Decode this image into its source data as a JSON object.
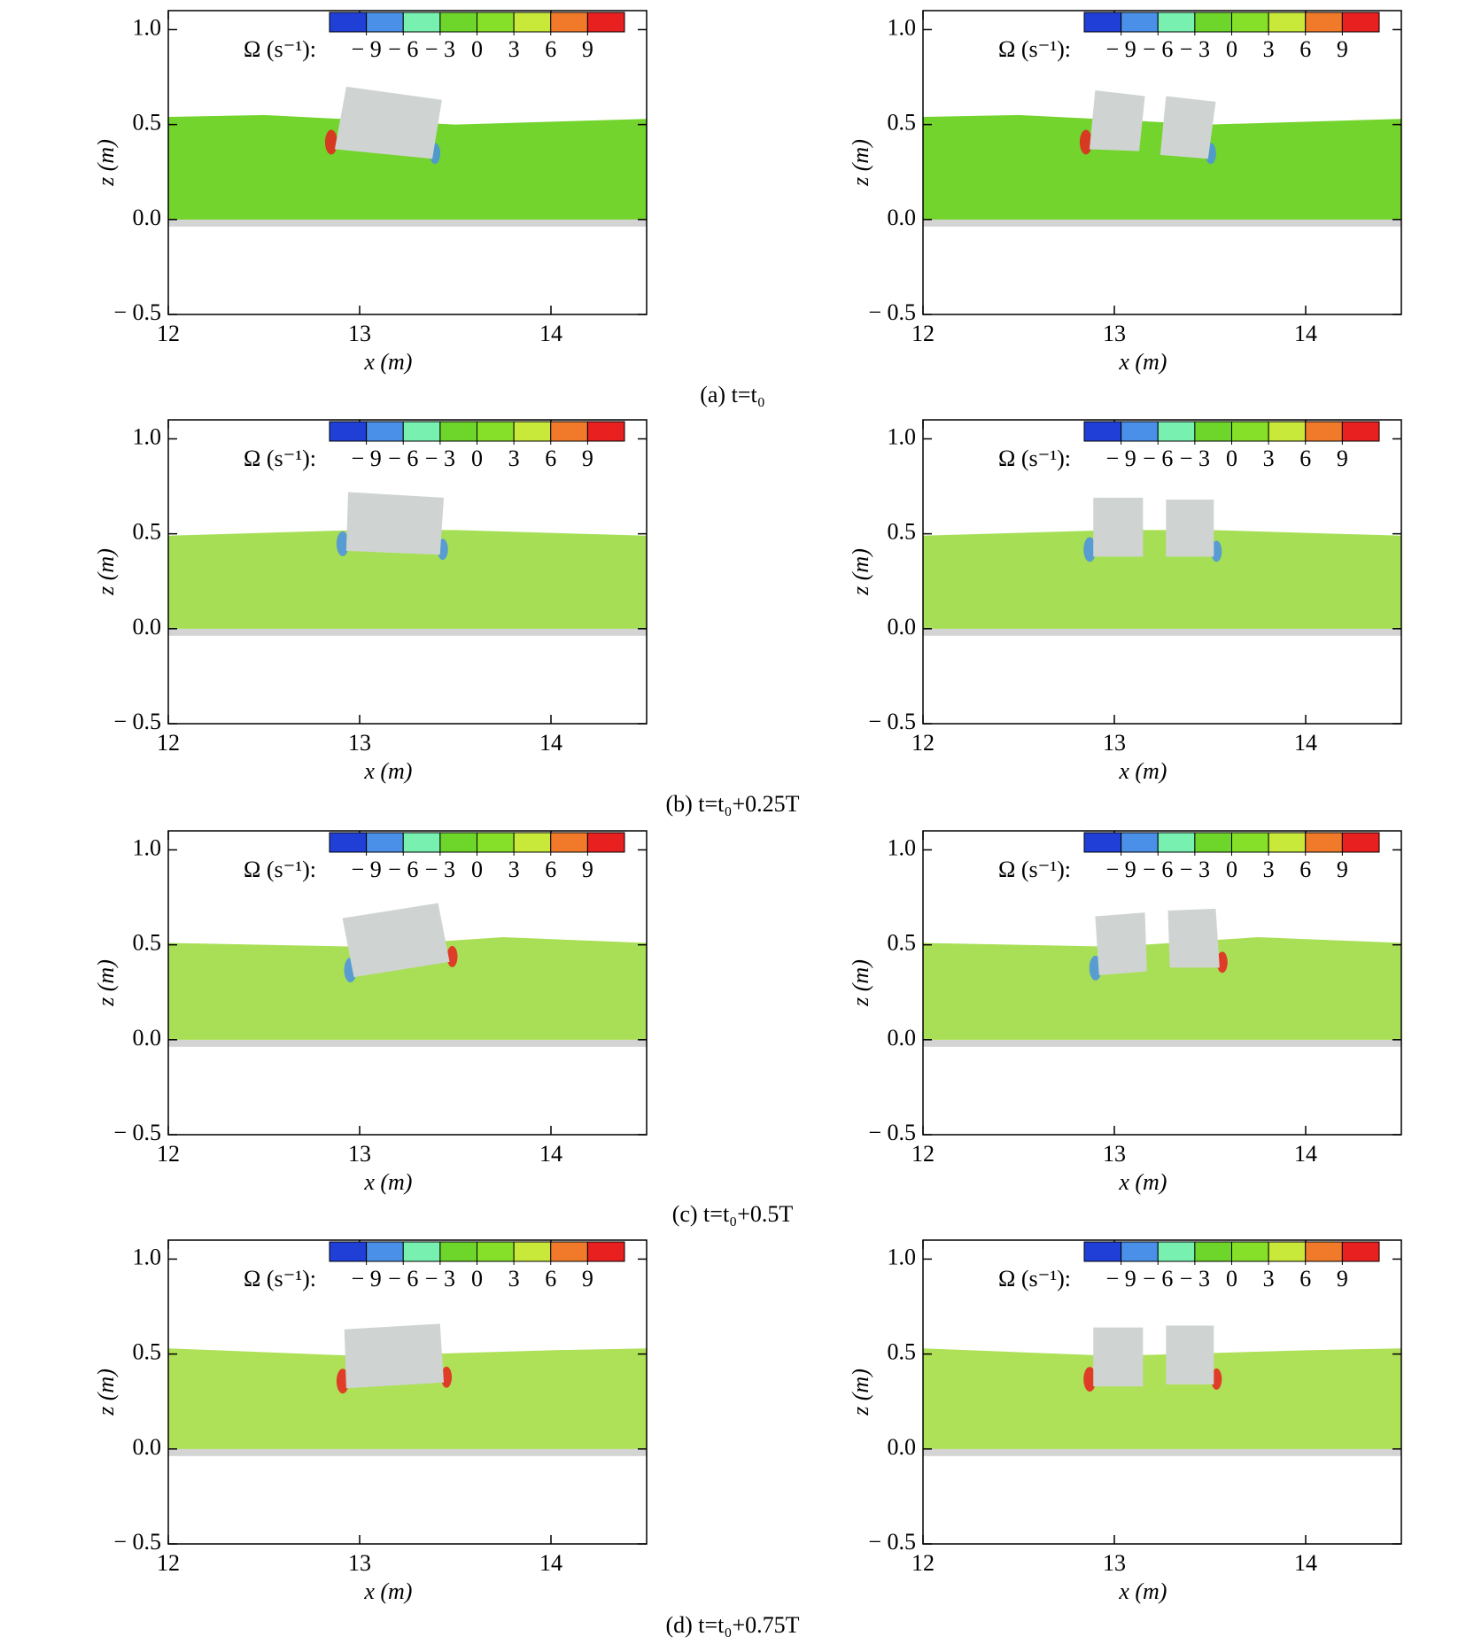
{
  "chart_data": [
    {
      "type": "field",
      "xlabel": "x (m)",
      "ylabel": "z (m)",
      "xlim": [
        12,
        14.5
      ],
      "ylim": [
        -0.5,
        1.1
      ],
      "xticks": [
        12,
        13,
        14
      ],
      "yticks": [
        {
          "value": -0.5,
          "label": "− 0.5"
        },
        {
          "value": 0,
          "label": "0.0"
        },
        {
          "value": 0.5,
          "label": "0.5"
        },
        {
          "value": 1,
          "label": "1.0"
        }
      ],
      "colorbar": {
        "label": "Ω (s⁻¹):",
        "lim": [
          -12,
          12
        ],
        "ticks": [
          {
            "value": -9,
            "label": "− 9"
          },
          {
            "value": -6,
            "label": "− 6"
          },
          {
            "value": -3,
            "label": "− 3"
          },
          0,
          3,
          6,
          9
        ],
        "colors": [
          "#1f3fd6",
          "#4a90e8",
          "#78f0b0",
          "#6ed62a",
          "#86e02a",
          "#c8e83a",
          "#f07a2a",
          "#e82020"
        ]
      }
    },
    {
      "type": "field",
      "xlabel": "x (m)",
      "ylabel": "z (m)",
      "xlim": [
        12,
        14.5
      ],
      "ylim": [
        -0.5,
        1.1
      ],
      "xticks": [
        12,
        13,
        14
      ],
      "yticks": [
        {
          "value": -0.5,
          "label": "− 0.5"
        },
        {
          "value": 0,
          "label": "0.0"
        },
        {
          "value": 0.5,
          "label": "0.5"
        },
        {
          "value": 1,
          "label": "1.0"
        }
      ],
      "colorbar": {
        "label": "Ω (s⁻¹):",
        "lim": [
          -12,
          12
        ],
        "ticks": [
          {
            "value": -9,
            "label": "− 9"
          },
          {
            "value": -6,
            "label": "− 6"
          },
          {
            "value": -3,
            "label": "− 3"
          },
          0,
          3,
          6,
          9
        ],
        "colors": [
          "#1f3fd6",
          "#4a90e8",
          "#78f0b0",
          "#6ed62a",
          "#86e02a",
          "#c8e83a",
          "#f07a2a",
          "#e82020"
        ]
      }
    },
    {
      "type": "field",
      "xlabel": "x (m)",
      "ylabel": "z (m)",
      "xlim": [
        12,
        14.5
      ],
      "ylim": [
        -0.5,
        1.1
      ],
      "xticks": [
        12,
        13,
        14
      ],
      "yticks": [
        {
          "value": -0.5,
          "label": "− 0.5"
        },
        {
          "value": 0,
          "label": "0.0"
        },
        {
          "value": 0.5,
          "label": "0.5"
        },
        {
          "value": 1,
          "label": "1.0"
        }
      ],
      "colorbar": {
        "label": "Ω (s⁻¹):",
        "lim": [
          -12,
          12
        ],
        "ticks": [
          {
            "value": -9,
            "label": "− 9"
          },
          {
            "value": -6,
            "label": "− 6"
          },
          {
            "value": -3,
            "label": "− 3"
          },
          0,
          3,
          6,
          9
        ],
        "colors": [
          "#1f3fd6",
          "#4a90e8",
          "#78f0b0",
          "#6ed62a",
          "#86e02a",
          "#c8e83a",
          "#f07a2a",
          "#e82020"
        ]
      }
    },
    {
      "type": "field",
      "xlabel": "x (m)",
      "ylabel": "z (m)",
      "xlim": [
        12,
        14.5
      ],
      "ylim": [
        -0.5,
        1.1
      ],
      "xticks": [
        12,
        13,
        14
      ],
      "yticks": [
        {
          "value": -0.5,
          "label": "− 0.5"
        },
        {
          "value": 0,
          "label": "0.0"
        },
        {
          "value": 0.5,
          "label": "0.5"
        },
        {
          "value": 1,
          "label": "1.0"
        }
      ],
      "colorbar": {
        "label": "Ω (s⁻¹):",
        "lim": [
          -12,
          12
        ],
        "ticks": [
          {
            "value": -9,
            "label": "− 9"
          },
          {
            "value": -6,
            "label": "− 6"
          },
          {
            "value": -3,
            "label": "− 3"
          },
          0,
          3,
          6,
          9
        ],
        "colors": [
          "#1f3fd6",
          "#4a90e8",
          "#78f0b0",
          "#6ed62a",
          "#86e02a",
          "#c8e83a",
          "#f07a2a",
          "#e82020"
        ]
      }
    },
    {
      "type": "field",
      "xlabel": "x (m)",
      "ylabel": "z (m)",
      "xlim": [
        12,
        14.5
      ],
      "ylim": [
        -0.5,
        1.1
      ],
      "xticks": [
        12,
        13,
        14
      ],
      "yticks": [
        {
          "value": -0.5,
          "label": "− 0.5"
        },
        {
          "value": 0,
          "label": "0.0"
        },
        {
          "value": 0.5,
          "label": "0.5"
        },
        {
          "value": 1,
          "label": "1.0"
        }
      ],
      "colorbar": {
        "label": "Ω (s⁻¹):",
        "lim": [
          -12,
          12
        ],
        "ticks": [
          {
            "value": -9,
            "label": "− 9"
          },
          {
            "value": -6,
            "label": "− 6"
          },
          {
            "value": -3,
            "label": "− 3"
          },
          0,
          3,
          6,
          9
        ],
        "colors": [
          "#1f3fd6",
          "#4a90e8",
          "#78f0b0",
          "#6ed62a",
          "#86e02a",
          "#c8e83a",
          "#f07a2a",
          "#e82020"
        ]
      }
    },
    {
      "type": "field",
      "xlabel": "x (m)",
      "ylabel": "z (m)",
      "xlim": [
        12,
        14.5
      ],
      "ylim": [
        -0.5,
        1.1
      ],
      "xticks": [
        12,
        13,
        14
      ],
      "yticks": [
        {
          "value": -0.5,
          "label": "− 0.5"
        },
        {
          "value": 0,
          "label": "0.0"
        },
        {
          "value": 0.5,
          "label": "0.5"
        },
        {
          "value": 1,
          "label": "1.0"
        }
      ],
      "colorbar": {
        "label": "Ω (s⁻¹):",
        "lim": [
          -12,
          12
        ],
        "ticks": [
          {
            "value": -9,
            "label": "− 9"
          },
          {
            "value": -6,
            "label": "− 6"
          },
          {
            "value": -3,
            "label": "− 3"
          },
          0,
          3,
          6,
          9
        ],
        "colors": [
          "#1f3fd6",
          "#4a90e8",
          "#78f0b0",
          "#6ed62a",
          "#86e02a",
          "#c8e83a",
          "#f07a2a",
          "#e82020"
        ]
      }
    },
    {
      "type": "field",
      "xlabel": "x (m)",
      "ylabel": "z (m)",
      "xlim": [
        12,
        14.5
      ],
      "ylim": [
        -0.5,
        1.1
      ],
      "xticks": [
        12,
        13,
        14
      ],
      "yticks": [
        {
          "value": -0.5,
          "label": "− 0.5"
        },
        {
          "value": 0,
          "label": "0.0"
        },
        {
          "value": 0.5,
          "label": "0.5"
        },
        {
          "value": 1,
          "label": "1.0"
        }
      ],
      "colorbar": {
        "label": "Ω (s⁻¹):",
        "lim": [
          -12,
          12
        ],
        "ticks": [
          {
            "value": -9,
            "label": "− 9"
          },
          {
            "value": -6,
            "label": "− 6"
          },
          {
            "value": -3,
            "label": "− 3"
          },
          0,
          3,
          6,
          9
        ],
        "colors": [
          "#1f3fd6",
          "#4a90e8",
          "#78f0b0",
          "#6ed62a",
          "#86e02a",
          "#c8e83a",
          "#f07a2a",
          "#e82020"
        ]
      }
    },
    {
      "type": "field",
      "xlabel": "x (m)",
      "ylabel": "z (m)",
      "xlim": [
        12,
        14.5
      ],
      "ylim": [
        -0.5,
        1.1
      ],
      "xticks": [
        12,
        13,
        14
      ],
      "yticks": [
        {
          "value": -0.5,
          "label": "− 0.5"
        },
        {
          "value": 0,
          "label": "0.0"
        },
        {
          "value": 0.5,
          "label": "0.5"
        },
        {
          "value": 1,
          "label": "1.0"
        }
      ],
      "colorbar": {
        "label": "Ω (s⁻¹):",
        "lim": [
          -12,
          12
        ],
        "ticks": [
          {
            "value": -9,
            "label": "− 9"
          },
          {
            "value": -6,
            "label": "− 6"
          },
          {
            "value": -3,
            "label": "− 3"
          },
          0,
          3,
          6,
          9
        ],
        "colors": [
          "#1f3fd6",
          "#4a90e8",
          "#78f0b0",
          "#6ed62a",
          "#86e02a",
          "#c8e83a",
          "#f07a2a",
          "#e82020"
        ]
      }
    }
  ],
  "captions": [
    "(a) t=t₀",
    "(b) t=t₀+0.25T",
    "(c) t=t₀+0.5T",
    "(d) t=t₀+0.75T"
  ]
}
